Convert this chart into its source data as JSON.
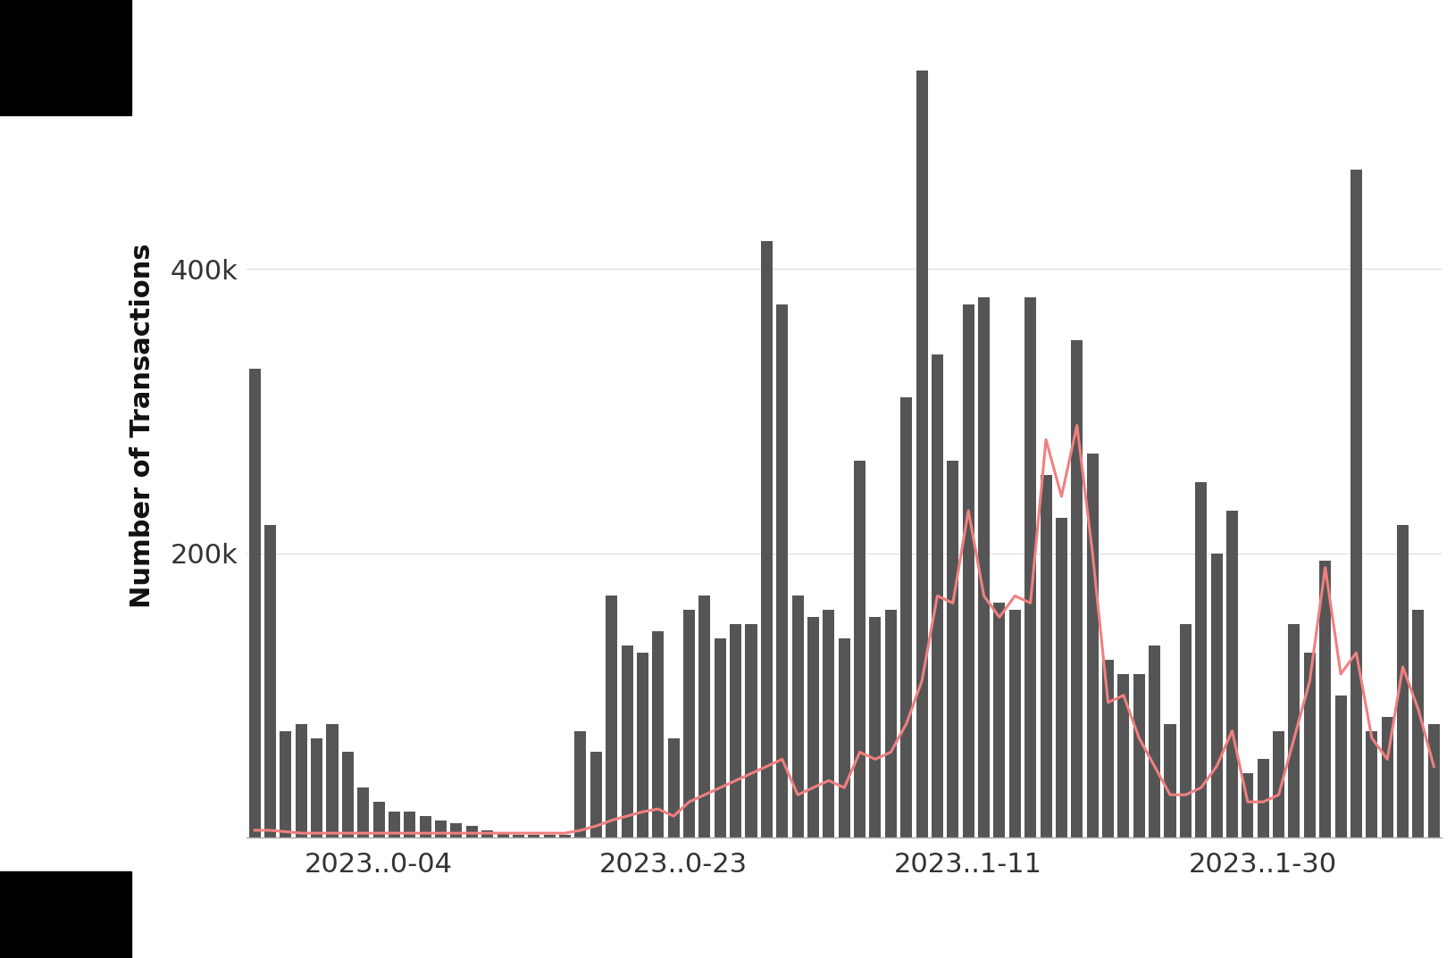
{
  "ylabel": "Number of Transactions",
  "bar_color": "#555555",
  "line_color": "#f08080",
  "background_color": "#ffffff",
  "ylim": [
    0,
    580000
  ],
  "yticks": [
    0,
    200000,
    400000
  ],
  "ytick_labels": [
    "",
    "200k",
    "400k"
  ],
  "bar_values": [
    330000,
    220000,
    75000,
    80000,
    70000,
    80000,
    60000,
    35000,
    25000,
    18000,
    18000,
    15000,
    12000,
    10000,
    8000,
    5000,
    3000,
    2000,
    2000,
    2000,
    2000,
    75000,
    60000,
    170000,
    135000,
    130000,
    145000,
    70000,
    160000,
    170000,
    140000,
    150000,
    150000,
    420000,
    375000,
    170000,
    155000,
    160000,
    140000,
    265000,
    155000,
    160000,
    310000,
    540000,
    340000,
    265000,
    375000,
    380000,
    165000,
    160000,
    380000,
    255000,
    225000,
    350000,
    270000,
    125000,
    115000,
    115000,
    135000,
    80000,
    150000,
    250000,
    200000,
    230000,
    45000,
    55000,
    75000,
    150000,
    130000,
    195000,
    100000,
    470000,
    75000,
    85000,
    220000,
    160000,
    80000
  ],
  "line_values": [
    5000,
    5000,
    4000,
    3000,
    3000,
    3000,
    3000,
    3000,
    3000,
    3000,
    3000,
    3000,
    3000,
    3000,
    3000,
    3000,
    3000,
    3000,
    3000,
    3000,
    3000,
    5000,
    8000,
    12000,
    15000,
    18000,
    20000,
    15000,
    25000,
    30000,
    35000,
    40000,
    45000,
    50000,
    55000,
    30000,
    35000,
    40000,
    35000,
    60000,
    55000,
    60000,
    80000,
    110000,
    170000,
    165000,
    230000,
    170000,
    155000,
    170000,
    165000,
    280000,
    240000,
    290000,
    200000,
    95000,
    100000,
    70000,
    50000,
    30000,
    30000,
    35000,
    50000,
    75000,
    25000,
    25000,
    30000,
    70000,
    110000,
    190000,
    115000,
    130000,
    70000,
    55000,
    120000,
    90000,
    50000
  ],
  "xtick_positions": [
    8,
    27,
    46,
    65
  ],
  "xtick_labels": [
    "2023..0-04",
    "2023..0-23",
    "2023..1-11",
    "2023..1-30"
  ]
}
